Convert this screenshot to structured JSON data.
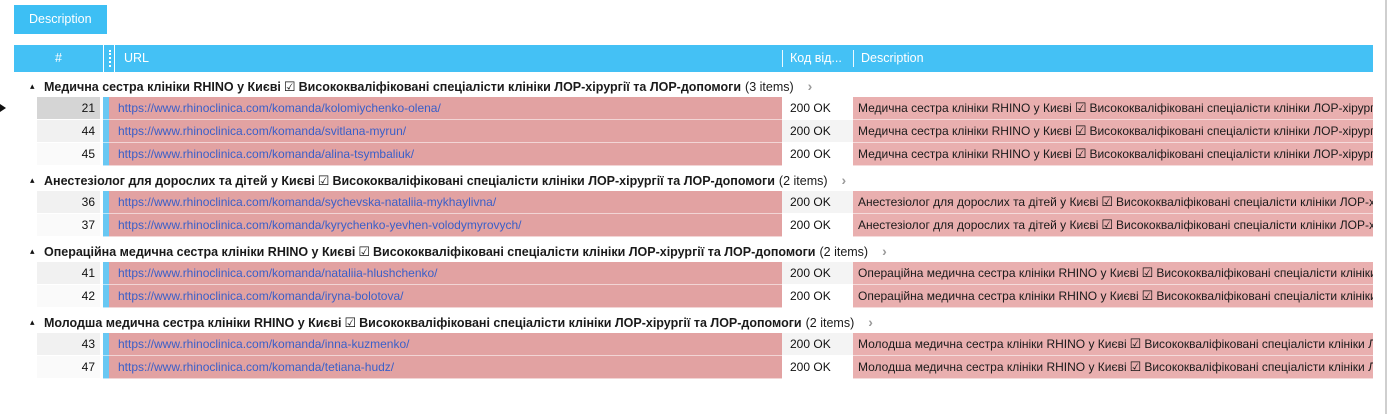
{
  "tab": {
    "label": "Description"
  },
  "columns": {
    "index": "#",
    "url": "URL",
    "status": "Код від...",
    "description": "Description"
  },
  "icons": {
    "checkbox": "☑",
    "collapse": "▴",
    "chevron": "›",
    "row_indicator": "▶"
  },
  "colors": {
    "accent_blue": "#3dbff4",
    "url_cell_pink": "#e2a2a2",
    "desc_cell_pink": "#e9afaf",
    "link_blue": "#3a5fc8",
    "stripe_blue": "#69c8f3",
    "selected_gray": "#d5d5d5"
  },
  "groups": [
    {
      "title": "Медична сестра клініки RHINO у Києві",
      "suffix": "Висококваліфіковані спеціалісти клініки ЛОР-хірургії та ЛОР-допомоги",
      "items": "(3 items)",
      "rows": [
        {
          "num": "21",
          "url": "https://www.rhinoclinica.com/komanda/kolomiychenko-olena/",
          "status": "200 OK",
          "desc_prefix": "Медична сестра клініки RHINO у Києві",
          "desc_suffix": "Висококваліфіковані спеціалісти клініки ЛОР-хірургії та ЛОР-допомоги"
        },
        {
          "num": "44",
          "url": "https://www.rhinoclinica.com/komanda/svitlana-myrun/",
          "status": "200 OK",
          "desc_prefix": "Медична сестра клініки RHINO у Києві",
          "desc_suffix": "Висококваліфіковані спеціалісти клініки ЛОР-хірургії та ЛОР-допомоги"
        },
        {
          "num": "45",
          "url": "https://www.rhinoclinica.com/komanda/alina-tsymbaliuk/",
          "status": "200 OK",
          "desc_prefix": "Медична сестра клініки RHINO у Києві",
          "desc_suffix": "Висококваліфіковані спеціалісти клініки ЛОР-хірургії та ЛОР-допомоги"
        }
      ]
    },
    {
      "title": "Анестезіолог для дорослих та дітей у Києві",
      "suffix": "Висококваліфіковані спеціалісти клініки ЛОР-хірургії та ЛОР-допомоги",
      "items": "(2 items)",
      "rows": [
        {
          "num": "36",
          "url": "https://www.rhinoclinica.com/komanda/sychevska-nataliia-mykhaylivna/",
          "status": "200 OK",
          "desc_prefix": "Анестезіолог для дорослих та дітей у Києві",
          "desc_suffix": "Висококваліфіковані спеціалісти клініки ЛОР-хірургії та ЛОР-допомоги"
        },
        {
          "num": "37",
          "url": "https://www.rhinoclinica.com/komanda/kyrychenko-yevhen-volodymyrovych/",
          "status": "200 OK",
          "desc_prefix": "Анестезіолог для дорослих та дітей у Києві",
          "desc_suffix": "Висококваліфіковані спеціалісти клініки ЛОР-хірургії та ЛОР-допомоги"
        }
      ]
    },
    {
      "title": "Операційна медична сестра клініки RHINO у Києві",
      "suffix": "Висококваліфіковані спеціалісти клініки ЛОР-хірургії та ЛОР-допомоги",
      "items": "(2 items)",
      "rows": [
        {
          "num": "41",
          "url": "https://www.rhinoclinica.com/komanda/nataliia-hlushchenko/",
          "status": "200 OK",
          "desc_prefix": "Операційна медична сестра клініки RHINO у Києві",
          "desc_suffix": "Висококваліфіковані спеціалісти клініки ЛОР-хірургії та ЛОР-допомоги"
        },
        {
          "num": "42",
          "url": "https://www.rhinoclinica.com/komanda/iryna-bolotova/",
          "status": "200 OK",
          "desc_prefix": "Операційна медична сестра клініки RHINO у Києві",
          "desc_suffix": "Висококваліфіковані спеціалісти клініки ЛОР-хірургії та ЛОР-допомоги"
        }
      ]
    },
    {
      "title": "Молодша медична сестра клініки RHINO у Києві",
      "suffix": "Висококваліфіковані спеціалісти клініки ЛОР-хірургії та ЛОР-допомоги",
      "items": "(2 items)",
      "rows": [
        {
          "num": "43",
          "url": "https://www.rhinoclinica.com/komanda/inna-kuzmenko/",
          "status": "200 OK",
          "desc_prefix": "Молодша медична сестра клініки RHINO у Києві",
          "desc_suffix": "Висококваліфіковані спеціалісти клініки ЛОР-хірургії та ЛОР-допомоги"
        },
        {
          "num": "47",
          "url": "https://www.rhinoclinica.com/komanda/tetiana-hudz/",
          "status": "200 OK",
          "desc_prefix": "Молодша медична сестра клініки RHINO у Києві",
          "desc_suffix": "Висококваліфіковані спеціалісти клініки ЛОР-хірургії та ЛОР-допомоги"
        }
      ]
    }
  ]
}
